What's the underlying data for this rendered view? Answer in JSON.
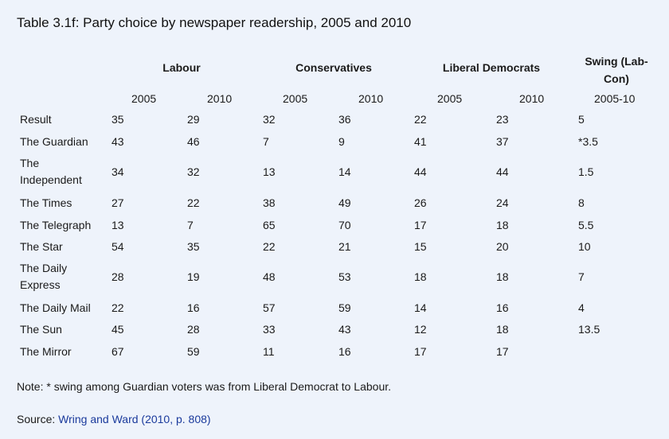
{
  "title": "Table 3.1f: Party choice by newspaper readership, 2005 and 2010",
  "headers": {
    "labour": "Labour",
    "conservatives": "Conservatives",
    "libdems": "Liberal Democrats",
    "swing_line1": "Swing (Lab-",
    "swing_line2": "Con)"
  },
  "subheaders": {
    "lab_2005": "2005",
    "lab_2010": "2010",
    "con_2005": "2005",
    "con_2010": "2010",
    "ld_2005": "2005",
    "ld_2010": "2010",
    "swing": "2005-10"
  },
  "rows": [
    {
      "label": [
        "Result"
      ],
      "lab05": "35",
      "lab10": "29",
      "con05": "32",
      "con10": "36",
      "ld05": "22",
      "ld10": "23",
      "swing": "5"
    },
    {
      "label": [
        "The Guardian"
      ],
      "lab05": "43",
      "lab10": "46",
      "con05": "7",
      "con10": "9",
      "ld05": "41",
      "ld10": "37",
      "swing": "*3.5"
    },
    {
      "label": [
        "The",
        "Independent"
      ],
      "lab05": "34",
      "lab10": "32",
      "con05": "13",
      "con10": "14",
      "ld05": "44",
      "ld10": "44",
      "swing": "1.5"
    },
    {
      "label": [
        "The Times"
      ],
      "lab05": "27",
      "lab10": "22",
      "con05": "38",
      "con10": "49",
      "ld05": "26",
      "ld10": "24",
      "swing": "8"
    },
    {
      "label": [
        "The Telegraph"
      ],
      "lab05": "13",
      "lab10": "7",
      "con05": "65",
      "con10": "70",
      "ld05": "17",
      "ld10": "18",
      "swing": "5.5"
    },
    {
      "label": [
        "The Star"
      ],
      "lab05": "54",
      "lab10": "35",
      "con05": "22",
      "con10": "21",
      "ld05": "15",
      "ld10": "20",
      "swing": "10"
    },
    {
      "label": [
        "The Daily",
        "Express"
      ],
      "lab05": "28",
      "lab10": "19",
      "con05": "48",
      "con10": "53",
      "ld05": "18",
      "ld10": "18",
      "swing": "7"
    },
    {
      "label": [
        "The Daily Mail"
      ],
      "lab05": "22",
      "lab10": "16",
      "con05": "57",
      "con10": "59",
      "ld05": "14",
      "ld10": "16",
      "swing": "4"
    },
    {
      "label": [
        "The Sun"
      ],
      "lab05": "45",
      "lab10": "28",
      "con05": "33",
      "con10": "43",
      "ld05": "12",
      "ld10": "18",
      "swing": "13.5"
    },
    {
      "label": [
        "The Mirror"
      ],
      "lab05": "67",
      "lab10": "59",
      "con05": "11",
      "con10": "16",
      "ld05": "17",
      "ld10": "17",
      "swing": ""
    }
  ],
  "note": "Note: * swing among Guardian voters was from Liberal Democrat to Labour.",
  "source_prefix": "Source: ",
  "source_link": "Wring and Ward (2010, p. 808)"
}
